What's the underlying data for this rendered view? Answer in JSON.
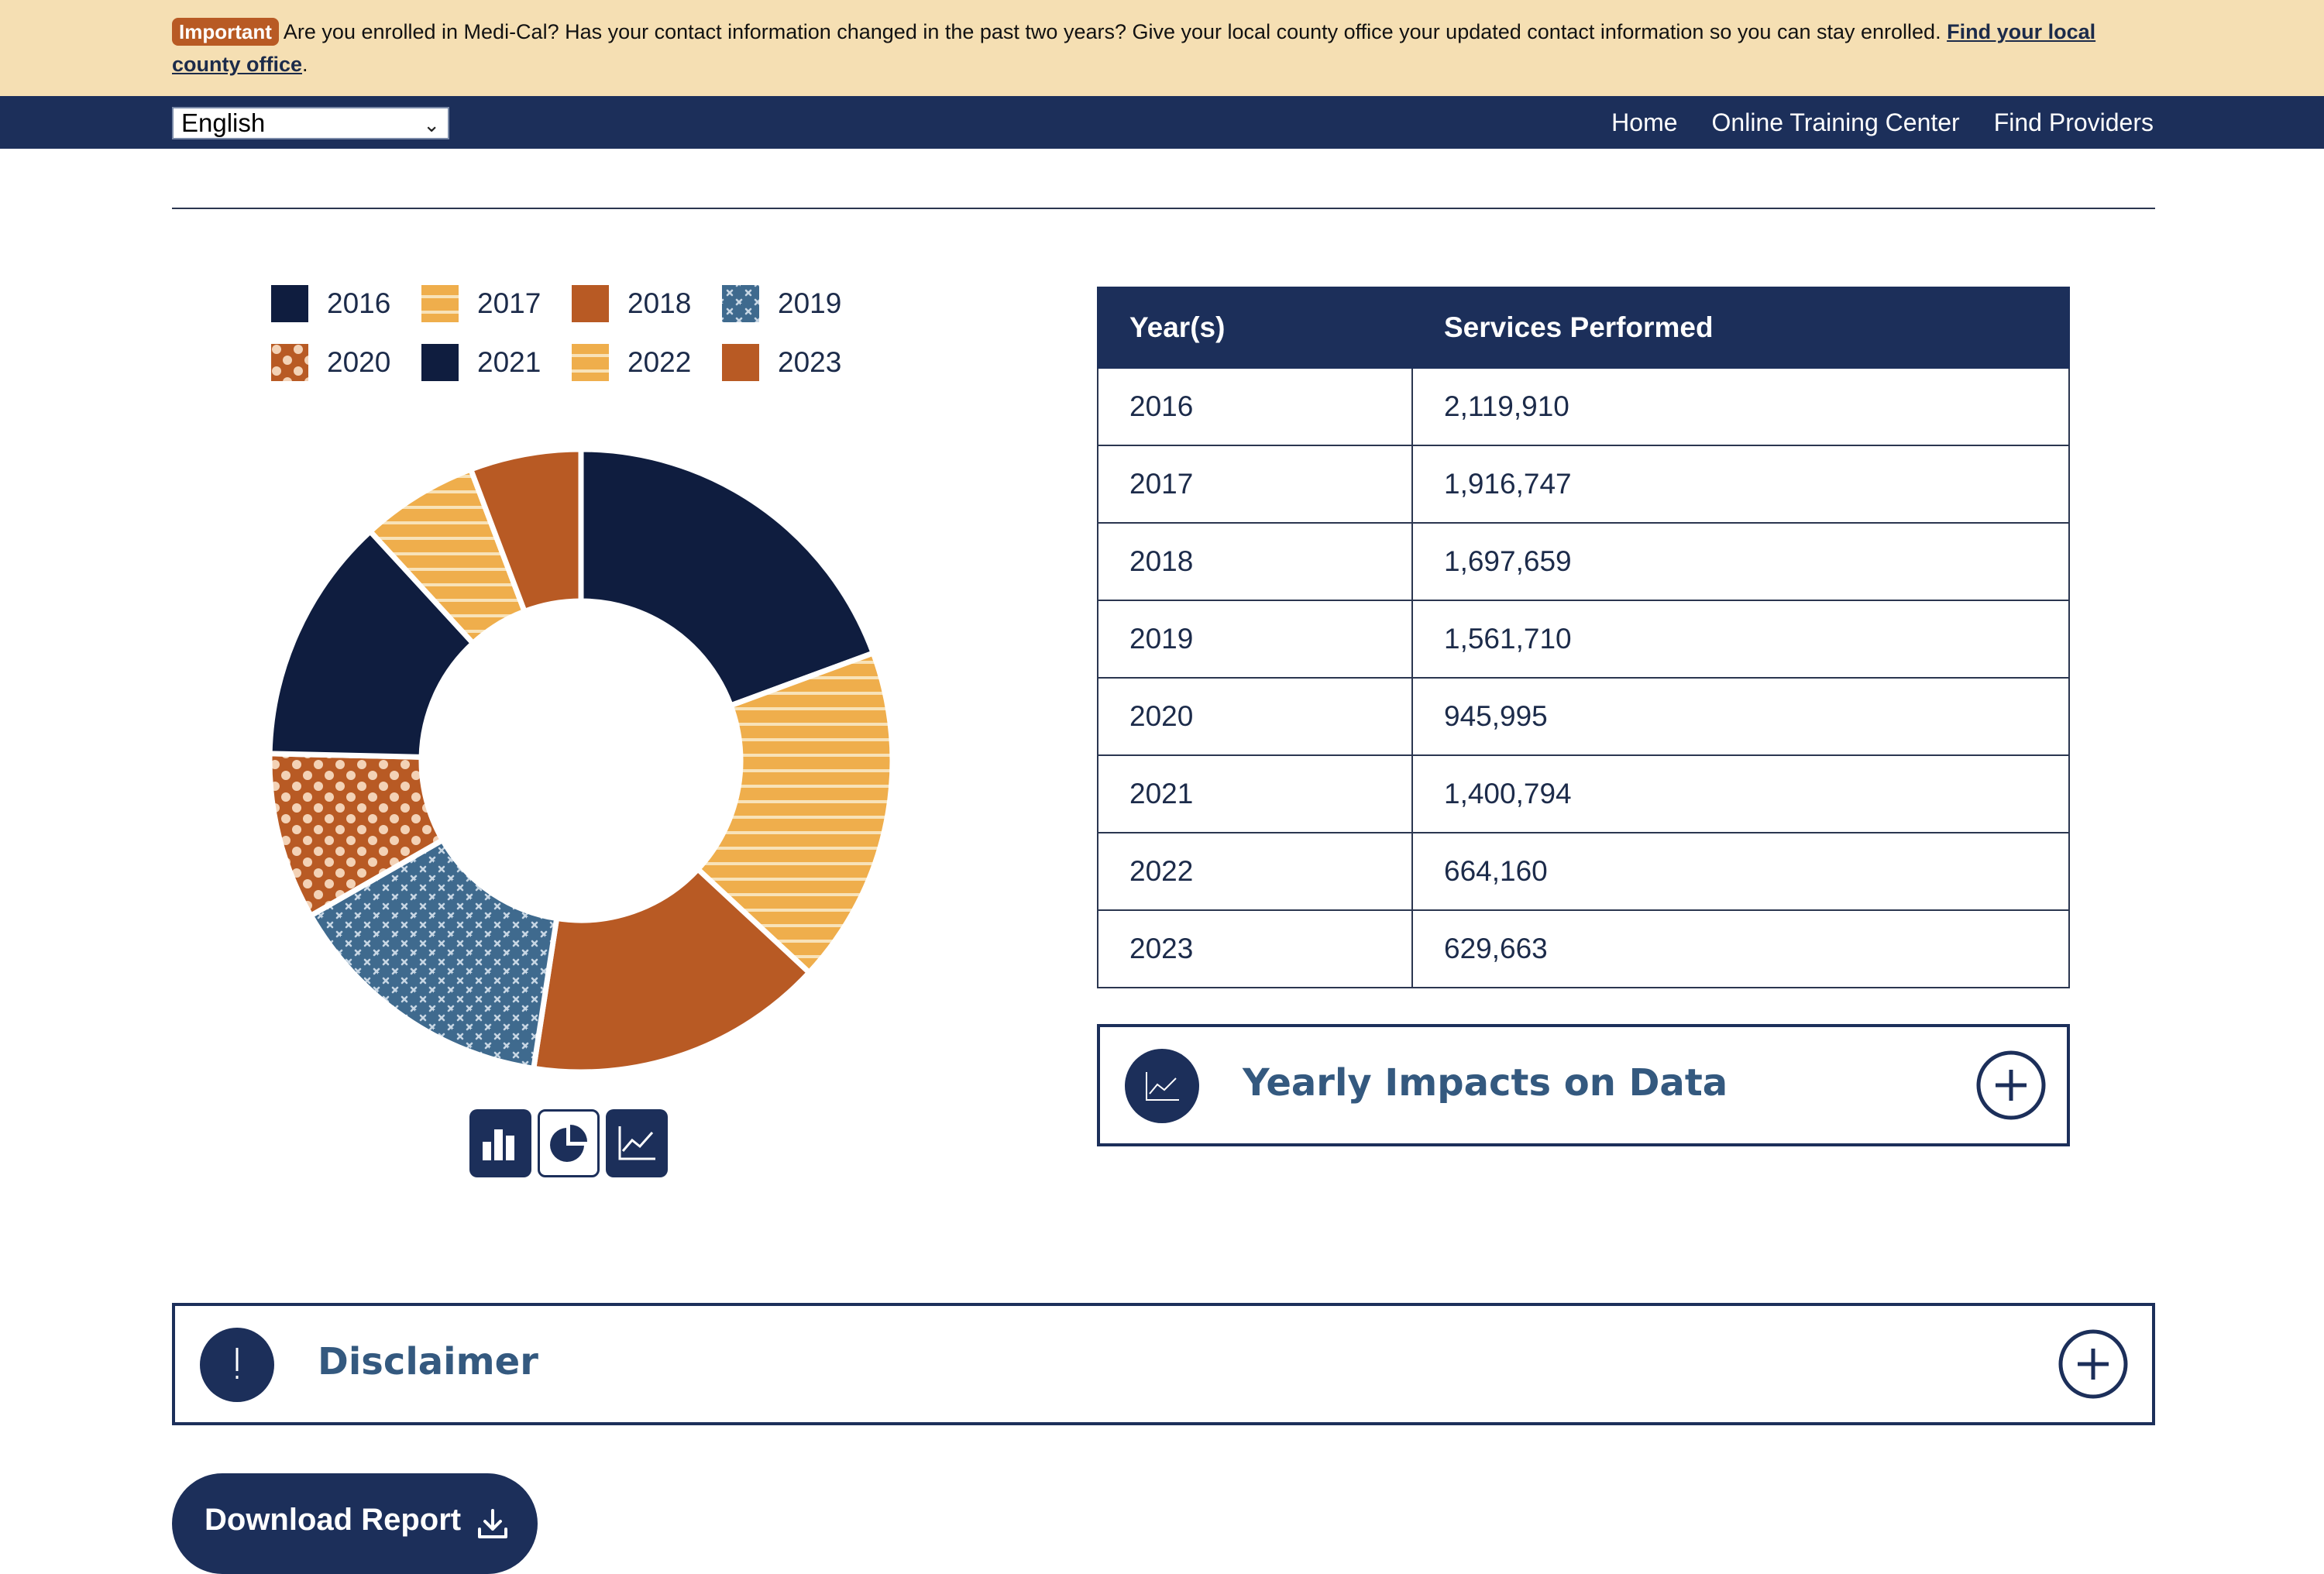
{
  "alert": {
    "badge": "Important",
    "message": "Are you enrolled in Medi-Cal? Has your contact information changed in the past two years? Give your local county office your updated contact information so you can stay enrolled.",
    "link_text": "Find your local county office",
    "suffix": "."
  },
  "nav": {
    "language": "English",
    "links": [
      "Home",
      "Online Training Center",
      "Find Providers"
    ]
  },
  "legend": {
    "items": [
      {
        "label": "2016",
        "pattern": "solid-navy"
      },
      {
        "label": "2017",
        "pattern": "stripes-gold"
      },
      {
        "label": "2018",
        "pattern": "solid-orange"
      },
      {
        "label": "2019",
        "pattern": "cross-blue"
      },
      {
        "label": "2020",
        "pattern": "dots-orange"
      },
      {
        "label": "2021",
        "pattern": "solid-navy"
      },
      {
        "label": "2022",
        "pattern": "stripes-gold"
      },
      {
        "label": "2023",
        "pattern": "solid-orange"
      }
    ]
  },
  "chart_data": {
    "type": "pie",
    "variant": "donut",
    "categories": [
      "2016",
      "2017",
      "2018",
      "2019",
      "2020",
      "2021",
      "2022",
      "2023"
    ],
    "values": [
      2119910,
      1916747,
      1697659,
      1561710,
      945995,
      1400794,
      664160,
      629663
    ],
    "colors": [
      "#0f1d3f",
      "#efae4c",
      "#b85a24",
      "#3f6a8e",
      "#b85a24",
      "#0f1d3f",
      "#efae4c",
      "#b85a24"
    ],
    "legend_position": "top"
  },
  "chart_controls": {
    "icons": [
      "bar-chart-icon",
      "pie-chart-icon",
      "line-chart-icon"
    ],
    "active": "pie-chart-icon"
  },
  "table": {
    "headers": [
      "Year(s)",
      "Services Performed"
    ],
    "rows": [
      [
        "2016",
        "2,119,910"
      ],
      [
        "2017",
        "1,916,747"
      ],
      [
        "2018",
        "1,697,659"
      ],
      [
        "2019",
        "1,561,710"
      ],
      [
        "2020",
        "945,995"
      ],
      [
        "2021",
        "1,400,794"
      ],
      [
        "2022",
        "664,160"
      ],
      [
        "2023",
        "629,663"
      ]
    ]
  },
  "accordions": {
    "yearly": {
      "title": "Yearly Impacts on Data",
      "icon": "line-chart-icon"
    },
    "disclaimer": {
      "title": "Disclaimer",
      "icon": "exclamation-icon"
    }
  },
  "download": {
    "label": "Download Report",
    "icon": "download-icon"
  }
}
